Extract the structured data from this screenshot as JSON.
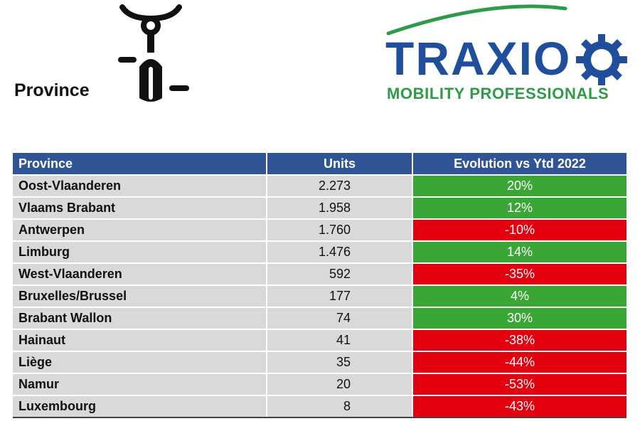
{
  "page": {
    "title": "Province"
  },
  "logo": {
    "name": "TRAXIO",
    "tagline": "MOBILITY PROFESSIONALS"
  },
  "icons": {
    "vehicle": "scooter-icon",
    "logo_gear": "gear-icon"
  },
  "colors": {
    "header_bg": "#2f5597",
    "positive": "#3aa635",
    "negative": "#e3000f",
    "row_bg": "#d9d9d9",
    "brand_blue": "#1f4f9c",
    "brand_green": "#2e9b48"
  },
  "table": {
    "headers": [
      "Province",
      "Units",
      "Evolution vs Ytd 2022"
    ],
    "rows": [
      {
        "province": "Oost-Vlaanderen",
        "units": "2.273",
        "evolution": "20%",
        "trend": "positive"
      },
      {
        "province": "Vlaams Brabant",
        "units": "1.958",
        "evolution": "12%",
        "trend": "positive"
      },
      {
        "province": "Antwerpen",
        "units": "1.760",
        "evolution": "-10%",
        "trend": "negative"
      },
      {
        "province": "Limburg",
        "units": "1.476",
        "evolution": "14%",
        "trend": "positive"
      },
      {
        "province": "West-Vlaanderen",
        "units": "592",
        "evolution": "-35%",
        "trend": "negative"
      },
      {
        "province": "Bruxelles/Brussel",
        "units": "177",
        "evolution": "4%",
        "trend": "positive"
      },
      {
        "province": "Brabant Wallon",
        "units": "74",
        "evolution": "30%",
        "trend": "positive"
      },
      {
        "province": "Hainaut",
        "units": "41",
        "evolution": "-38%",
        "trend": "negative"
      },
      {
        "province": "Liège",
        "units": "35",
        "evolution": "-44%",
        "trend": "negative"
      },
      {
        "province": "Namur",
        "units": "20",
        "evolution": "-53%",
        "trend": "negative"
      },
      {
        "province": "Luxembourg",
        "units": "8",
        "evolution": "-43%",
        "trend": "negative"
      }
    ]
  }
}
